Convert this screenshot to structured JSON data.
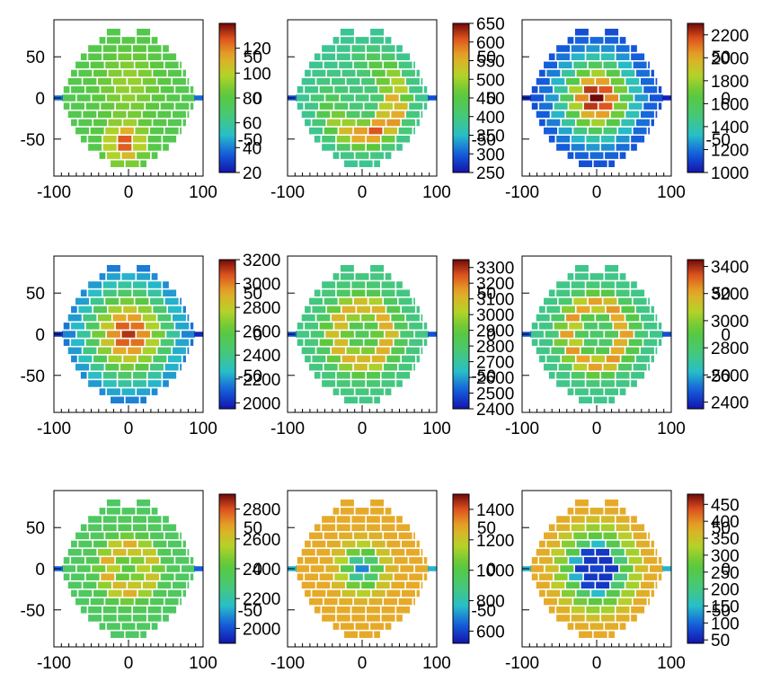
{
  "chart_data": [
    {
      "type": "heatmap",
      "panel": "row1-col1",
      "pattern": "bottom-hot",
      "xlim": [
        -100,
        100
      ],
      "ylim": [
        -95,
        95
      ],
      "xticks": [
        -100,
        0,
        100
      ],
      "yticks": [
        50,
        0,
        -50
      ],
      "colorbar": {
        "range": [
          20,
          140
        ],
        "labels": [
          120,
          100,
          80,
          60,
          40,
          20
        ]
      },
      "overlay_labels": [
        "50",
        "0",
        "-50"
      ]
    },
    {
      "type": "heatmap",
      "panel": "row1-col2",
      "pattern": "crescent",
      "xlim": [
        -100,
        100
      ],
      "ylim": [
        -95,
        95
      ],
      "xticks": [
        -100,
        0,
        100
      ],
      "yticks": [],
      "colorbar": {
        "range": [
          250,
          650
        ],
        "labels": [
          650,
          600,
          550,
          500,
          450,
          400,
          350,
          300,
          250
        ]
      },
      "overlay_labels": [
        "50",
        "0",
        "-50"
      ]
    },
    {
      "type": "heatmap",
      "panel": "row1-col3",
      "pattern": "center-peak",
      "xlim": [
        -100,
        100
      ],
      "ylim": [
        -95,
        95
      ],
      "xticks": [
        -100,
        0,
        100
      ],
      "yticks": [],
      "colorbar": {
        "range": [
          1000,
          2300
        ],
        "labels": [
          2200,
          2000,
          1800,
          1600,
          1400,
          1200,
          1000
        ]
      },
      "overlay_labels": [
        "50",
        "0",
        "-50"
      ]
    },
    {
      "type": "heatmap",
      "panel": "row2-col1",
      "pattern": "center-peak-broad",
      "xlim": [
        -100,
        100
      ],
      "ylim": [
        -95,
        95
      ],
      "xticks": [
        -100,
        0,
        100
      ],
      "yticks": [
        50,
        0,
        -50
      ],
      "colorbar": {
        "range": [
          1950,
          3200
        ],
        "labels": [
          3200,
          3000,
          2800,
          2600,
          2400,
          2200,
          2000
        ]
      },
      "overlay_labels": [
        "50",
        "0",
        "-50"
      ]
    },
    {
      "type": "heatmap",
      "panel": "row2-col2",
      "pattern": "ring-small",
      "xlim": [
        -100,
        100
      ],
      "ylim": [
        -95,
        95
      ],
      "xticks": [
        -100,
        0,
        100
      ],
      "yticks": [],
      "colorbar": {
        "range": [
          2400,
          3350
        ],
        "labels": [
          3300,
          3200,
          3100,
          3000,
          2900,
          2800,
          2700,
          2600,
          2500,
          2400
        ]
      },
      "overlay_labels": [
        "50",
        "0",
        "-50"
      ]
    },
    {
      "type": "heatmap",
      "panel": "row2-col3",
      "pattern": "ring",
      "xlim": [
        -100,
        100
      ],
      "ylim": [
        -95,
        95
      ],
      "xticks": [
        -100,
        0,
        100
      ],
      "yticks": [],
      "colorbar": {
        "range": [
          2350,
          3450
        ],
        "labels": [
          3400,
          3200,
          3000,
          2800,
          2600,
          2400
        ]
      },
      "overlay_labels": [
        "50",
        "0",
        "-50"
      ]
    },
    {
      "type": "heatmap",
      "panel": "row3-col1",
      "pattern": "ring-large",
      "xlim": [
        -100,
        100
      ],
      "ylim": [
        -95,
        95
      ],
      "xticks": [
        -100,
        0,
        100
      ],
      "yticks": [
        50,
        0,
        -50
      ],
      "colorbar": {
        "range": [
          1900,
          2900
        ],
        "labels": [
          2800,
          2600,
          2400,
          2200,
          2000
        ]
      },
      "overlay_labels": [
        "50",
        "0",
        "-50"
      ]
    },
    {
      "type": "heatmap",
      "panel": "row3-col2",
      "pattern": "center-hole",
      "xlim": [
        -100,
        100
      ],
      "ylim": [
        -95,
        95
      ],
      "xticks": [
        -100,
        0,
        100
      ],
      "yticks": [],
      "colorbar": {
        "range": [
          520,
          1500
        ],
        "labels": [
          1400,
          1200,
          1000,
          800,
          600
        ]
      },
      "overlay_labels": [
        "50",
        "0",
        "-50"
      ]
    },
    {
      "type": "heatmap",
      "panel": "row3-col3",
      "pattern": "center-hole-wide",
      "xlim": [
        -100,
        100
      ],
      "ylim": [
        -95,
        95
      ],
      "xticks": [
        -100,
        0,
        100
      ],
      "yticks": [],
      "colorbar": {
        "range": [
          40,
          480
        ],
        "labels": [
          450,
          400,
          350,
          300,
          250,
          200,
          150,
          100,
          50
        ]
      },
      "overlay_labels": [
        "50",
        "0",
        "-50"
      ]
    }
  ]
}
